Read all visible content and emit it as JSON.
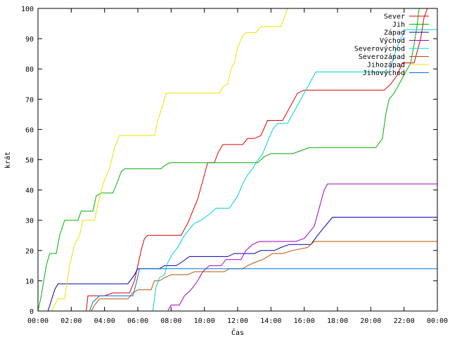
{
  "chart_data": {
    "type": "line",
    "xlabel": "Čas",
    "ylabel": "krát",
    "xlim": [
      0,
      24
    ],
    "ylim": [
      0,
      100
    ],
    "grid": false,
    "legend_position": "top-right",
    "x_ticks": [
      {
        "v": 0,
        "label": "00:00"
      },
      {
        "v": 2,
        "label": "02:00"
      },
      {
        "v": 4,
        "label": "04:00"
      },
      {
        "v": 6,
        "label": "06:00"
      },
      {
        "v": 8,
        "label": "08:00"
      },
      {
        "v": 10,
        "label": "10:00"
      },
      {
        "v": 12,
        "label": "12:00"
      },
      {
        "v": 14,
        "label": "14:00"
      },
      {
        "v": 16,
        "label": "16:00"
      },
      {
        "v": 18,
        "label": "18:00"
      },
      {
        "v": 20,
        "label": "20:00"
      },
      {
        "v": 22,
        "label": "22:00"
      },
      {
        "v": 24,
        "label": "00:00"
      }
    ],
    "y_ticks": [
      0,
      10,
      20,
      30,
      40,
      50,
      60,
      70,
      80,
      90,
      100
    ],
    "series": [
      {
        "name": "Sever",
        "color": "#e00000",
        "points": [
          [
            2.9,
            0
          ],
          [
            3.0,
            5
          ],
          [
            4.0,
            5
          ],
          [
            4.5,
            6
          ],
          [
            5.5,
            6
          ],
          [
            5.8,
            10
          ],
          [
            6.0,
            15
          ],
          [
            6.2,
            20
          ],
          [
            6.4,
            24
          ],
          [
            6.6,
            25
          ],
          [
            8.6,
            25
          ],
          [
            9.0,
            29
          ],
          [
            9.3,
            33
          ],
          [
            9.6,
            37
          ],
          [
            9.9,
            43
          ],
          [
            10.2,
            49
          ],
          [
            10.6,
            49
          ],
          [
            10.8,
            52
          ],
          [
            11.1,
            55
          ],
          [
            12.3,
            55
          ],
          [
            12.6,
            57
          ],
          [
            13.0,
            57
          ],
          [
            13.4,
            58
          ],
          [
            13.8,
            63
          ],
          [
            14.7,
            63
          ],
          [
            15.1,
            67
          ],
          [
            15.6,
            72
          ],
          [
            16.0,
            73
          ],
          [
            19.4,
            73
          ],
          [
            20.3,
            73
          ],
          [
            20.8,
            73
          ],
          [
            21.2,
            75
          ],
          [
            21.6,
            78
          ],
          [
            21.9,
            82
          ],
          [
            22.6,
            82
          ],
          [
            23.0,
            90
          ],
          [
            23.2,
            97
          ],
          [
            23.4,
            100
          ]
        ]
      },
      {
        "name": "Jih",
        "color": "#00b000",
        "points": [
          [
            0.0,
            0
          ],
          [
            0.2,
            5
          ],
          [
            0.5,
            15
          ],
          [
            0.7,
            19
          ],
          [
            1.1,
            19
          ],
          [
            1.3,
            25
          ],
          [
            1.6,
            30
          ],
          [
            2.4,
            30
          ],
          [
            2.6,
            33
          ],
          [
            3.3,
            33
          ],
          [
            3.5,
            38
          ],
          [
            3.8,
            39
          ],
          [
            4.5,
            39
          ],
          [
            4.8,
            43
          ],
          [
            5.0,
            46
          ],
          [
            5.2,
            47
          ],
          [
            7.4,
            47
          ],
          [
            7.6,
            48
          ],
          [
            7.9,
            49
          ],
          [
            10.7,
            49
          ],
          [
            13.2,
            49
          ],
          [
            13.6,
            51
          ],
          [
            14.0,
            52
          ],
          [
            15.3,
            52
          ],
          [
            15.8,
            53
          ],
          [
            16.3,
            54
          ],
          [
            20.3,
            54
          ],
          [
            20.7,
            57
          ],
          [
            20.9,
            65
          ],
          [
            21.1,
            70
          ],
          [
            21.4,
            72
          ],
          [
            21.7,
            75
          ],
          [
            22.0,
            78
          ],
          [
            22.4,
            82
          ],
          [
            22.6,
            88
          ],
          [
            22.8,
            95
          ],
          [
            22.9,
            100
          ]
        ]
      },
      {
        "name": "Západ",
        "color": "#0000b0",
        "points": [
          [
            0.6,
            0
          ],
          [
            1.0,
            7
          ],
          [
            1.2,
            9
          ],
          [
            5.4,
            9
          ],
          [
            5.8,
            12
          ],
          [
            6.0,
            14
          ],
          [
            7.3,
            14
          ],
          [
            7.6,
            15
          ],
          [
            8.3,
            15
          ],
          [
            8.6,
            16
          ],
          [
            9.1,
            18
          ],
          [
            11.4,
            18
          ],
          [
            11.8,
            19
          ],
          [
            13.0,
            19
          ],
          [
            13.4,
            20
          ],
          [
            14.2,
            20
          ],
          [
            14.6,
            21
          ],
          [
            15.1,
            22
          ],
          [
            16.4,
            22
          ],
          [
            16.8,
            25
          ],
          [
            17.1,
            27
          ],
          [
            17.4,
            29
          ],
          [
            17.7,
            31
          ],
          [
            24.0,
            31
          ]
        ]
      },
      {
        "name": "Východ",
        "color": "#a000c0",
        "points": [
          [
            7.8,
            0
          ],
          [
            8.0,
            2
          ],
          [
            8.5,
            2
          ],
          [
            8.8,
            5
          ],
          [
            9.2,
            7
          ],
          [
            9.6,
            10
          ],
          [
            9.9,
            13
          ],
          [
            10.3,
            15
          ],
          [
            11.0,
            15
          ],
          [
            11.3,
            17
          ],
          [
            12.2,
            17
          ],
          [
            12.5,
            20
          ],
          [
            12.9,
            22
          ],
          [
            13.3,
            23
          ],
          [
            15.5,
            23
          ],
          [
            16.0,
            24
          ],
          [
            16.6,
            28
          ],
          [
            16.8,
            32
          ],
          [
            17.0,
            36
          ],
          [
            17.2,
            40
          ],
          [
            17.4,
            42
          ],
          [
            24.0,
            42
          ]
        ]
      },
      {
        "name": "Severovýchod",
        "color": "#00d0d0",
        "points": [
          [
            6.9,
            0
          ],
          [
            7.1,
            8
          ],
          [
            7.3,
            11
          ],
          [
            7.6,
            12
          ],
          [
            7.8,
            16
          ],
          [
            8.1,
            19
          ],
          [
            8.4,
            21
          ],
          [
            8.8,
            25
          ],
          [
            9.1,
            27
          ],
          [
            9.4,
            29
          ],
          [
            9.8,
            30
          ],
          [
            10.3,
            32
          ],
          [
            10.7,
            34
          ],
          [
            11.5,
            34
          ],
          [
            12.0,
            38
          ],
          [
            12.3,
            42
          ],
          [
            12.6,
            45
          ],
          [
            12.9,
            47
          ],
          [
            13.1,
            49
          ],
          [
            13.5,
            52
          ],
          [
            13.8,
            56
          ],
          [
            14.1,
            60
          ],
          [
            14.4,
            62
          ],
          [
            15.0,
            62
          ],
          [
            15.4,
            66
          ],
          [
            15.8,
            70
          ],
          [
            16.1,
            73
          ],
          [
            16.4,
            76
          ],
          [
            16.7,
            79
          ],
          [
            21.1,
            79
          ],
          [
            21.5,
            86
          ],
          [
            21.8,
            90
          ],
          [
            22.1,
            93
          ],
          [
            24.0,
            93
          ]
        ]
      },
      {
        "name": "Severozápad",
        "color": "#c05000",
        "points": [
          [
            3.2,
            0
          ],
          [
            3.4,
            2
          ],
          [
            3.7,
            4
          ],
          [
            5.4,
            4
          ],
          [
            5.7,
            6
          ],
          [
            6.0,
            7
          ],
          [
            6.8,
            7
          ],
          [
            7.0,
            10
          ],
          [
            7.3,
            10
          ],
          [
            7.6,
            11
          ],
          [
            8.0,
            12
          ],
          [
            9.0,
            12
          ],
          [
            9.4,
            13
          ],
          [
            11.2,
            13
          ],
          [
            11.5,
            14
          ],
          [
            12.3,
            14
          ],
          [
            12.6,
            15
          ],
          [
            13.0,
            16
          ],
          [
            13.5,
            17
          ],
          [
            14.1,
            19
          ],
          [
            14.7,
            19
          ],
          [
            15.3,
            20
          ],
          [
            16.2,
            21
          ],
          [
            16.6,
            23
          ],
          [
            24.0,
            23
          ]
        ]
      },
      {
        "name": "Jihozápad",
        "color": "#f0e000",
        "points": [
          [
            0.8,
            0
          ],
          [
            1.0,
            2
          ],
          [
            1.2,
            4
          ],
          [
            1.6,
            4
          ],
          [
            1.9,
            15
          ],
          [
            2.2,
            22
          ],
          [
            2.5,
            25
          ],
          [
            2.7,
            30
          ],
          [
            3.4,
            30
          ],
          [
            3.6,
            35
          ],
          [
            3.9,
            42
          ],
          [
            4.3,
            47
          ],
          [
            4.6,
            54
          ],
          [
            4.9,
            58
          ],
          [
            7.0,
            58
          ],
          [
            7.2,
            63
          ],
          [
            7.5,
            68
          ],
          [
            7.7,
            72
          ],
          [
            10.9,
            72
          ],
          [
            11.1,
            74
          ],
          [
            11.4,
            75
          ],
          [
            11.6,
            80
          ],
          [
            11.8,
            82
          ],
          [
            12.0,
            87
          ],
          [
            12.3,
            91
          ],
          [
            12.5,
            92
          ],
          [
            13.1,
            92
          ],
          [
            13.4,
            94
          ],
          [
            14.6,
            94
          ],
          [
            14.8,
            97
          ],
          [
            15.0,
            100
          ]
        ]
      },
      {
        "name": "Jihovýchod",
        "color": "#0070e0",
        "points": [
          [
            3.1,
            0
          ],
          [
            3.3,
            3
          ],
          [
            3.7,
            5
          ],
          [
            5.7,
            5
          ],
          [
            5.9,
            9
          ],
          [
            6.1,
            14
          ],
          [
            24.0,
            14
          ]
        ]
      }
    ]
  }
}
